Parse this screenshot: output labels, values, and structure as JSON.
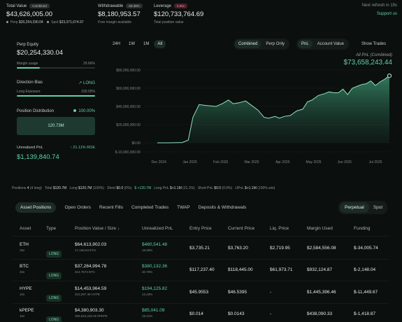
{
  "header": {
    "total_value_label": "Total Value",
    "total_value_badge": "Combined",
    "total_value": "$43,626,005.00",
    "perp_label": "Perp",
    "perp_value": "$20,254,330.04",
    "spot_label": "Spot",
    "spot_value": "$23,371,674.97",
    "withdrawable_label": "Withdrawable",
    "withdrawable_pct": "60.39%",
    "withdrawable_value": "$8,180,953.57",
    "withdrawable_sub": "Free margin available",
    "leverage_label": "Leverage",
    "leverage_badge": "5.96x",
    "leverage_value": "$120,733,764.69",
    "leverage_sub": "Total position value",
    "refresh_text": "Next refresh in 19s",
    "support_link": "Support us"
  },
  "left": {
    "perp_equity_label": "Perp Equity",
    "perp_equity_value": "$20,254,330.04",
    "margin_usage_label": "Margin usage",
    "margin_usage_value": "29.66%",
    "margin_usage_fraction": 0.2966,
    "direction_bias_label": "Direction Bias",
    "direction_bias_value": "LONG",
    "long_exposure_label": "Long Exposure",
    "long_exposure_value": "100.00%",
    "long_exposure_fraction": 1.0,
    "position_distribution_label": "Position Distribution",
    "position_distribution_value": "100.00%",
    "distribution_box_value": "120.73M",
    "unrealized_pnl_label": "Unrealized PnL",
    "unrealized_pnl_roe": "21.11% ROE",
    "unrealized_pnl_value": "$1,139,840.74"
  },
  "chart_controls": {
    "ranges": [
      "24H",
      "1W",
      "1M",
      "All"
    ],
    "active_range": "All",
    "modes": [
      "Combined",
      "Perp Only"
    ],
    "active_mode": "Combined",
    "views": [
      "PnL",
      "Account Value"
    ],
    "active_view": "PnL",
    "show_trades": "Show Trades"
  },
  "chart_data": {
    "type": "area",
    "title": "All PnL (Combined)",
    "current_value_label": "$73,658,243.44",
    "y_ticks": [
      "$80,000,000.00",
      "$60,000,000.00",
      "$40,000,000.00",
      "$20,000,000.00",
      "$0.00",
      "$-10,000,000.00"
    ],
    "ylim": [
      -10000000,
      80000000
    ],
    "x_ticks": [
      "Dec 2024",
      "Jan 2025",
      "Feb 2025",
      "Mar 2025",
      "Apr 2025",
      "May 2025",
      "Jun 2025",
      "Jul 2025"
    ],
    "series": [
      {
        "values": [
          [
            0,
            0
          ],
          [
            0.4,
            0
          ],
          [
            0.8,
            200000
          ],
          [
            1.0,
            3000000
          ],
          [
            1.15,
            28000000
          ],
          [
            1.35,
            42000000
          ],
          [
            1.6,
            41000000
          ],
          [
            1.9,
            40000000
          ],
          [
            2.1,
            43000000
          ],
          [
            2.3,
            47000000
          ],
          [
            2.45,
            43000000
          ],
          [
            2.65,
            44000000
          ],
          [
            2.85,
            46000000
          ],
          [
            3.05,
            41000000
          ],
          [
            3.25,
            36000000
          ],
          [
            3.45,
            28000000
          ],
          [
            3.6,
            27000000
          ],
          [
            3.8,
            29000000
          ],
          [
            3.95,
            27000000
          ],
          [
            4.1,
            29000000
          ],
          [
            4.3,
            30000000
          ],
          [
            4.5,
            35000000
          ],
          [
            4.7,
            37000000
          ],
          [
            4.85,
            45000000
          ],
          [
            5.0,
            47000000
          ],
          [
            5.2,
            52000000
          ],
          [
            5.4,
            54000000
          ],
          [
            5.55,
            56000000
          ],
          [
            5.7,
            55000000
          ],
          [
            5.85,
            55000000
          ],
          [
            6.0,
            59000000
          ],
          [
            6.15,
            53000000
          ],
          [
            6.3,
            60000000
          ],
          [
            6.45,
            62000000
          ],
          [
            6.6,
            64000000
          ],
          [
            6.75,
            65000000
          ],
          [
            6.9,
            68000000
          ],
          [
            7.05,
            63000000
          ],
          [
            7.2,
            67000000
          ],
          [
            7.35,
            70000000
          ],
          [
            7.5,
            73658243
          ]
        ]
      }
    ],
    "grid": true
  },
  "stats_strip": {
    "positions_label": "Positions",
    "positions_value": "4",
    "positions_sub": "(4 long)",
    "total_label": "Total",
    "total_value": "$120.7M",
    "long_label": "Long",
    "long_value": "$120.7M",
    "long_pct": "(100%)",
    "short_label": "Short",
    "short_value": "$0.0",
    "short_pct": "(0%)",
    "net_value": "$ +120.7M",
    "long_pnl_label": "Long PnL",
    "long_pnl_value": "$+1.1M",
    "long_pnl_pct": "(21.1%)",
    "short_pnl_label": "Short PnL",
    "short_pnl_value": "$0.0",
    "short_pnl_pct": "(0.0%)",
    "upnl_label": "UPnL",
    "upnl_value": "$+1.1M",
    "upnl_pct": "(100% win)"
  },
  "table_tabs": {
    "tabs": [
      "Asset Positions",
      "Open Orders",
      "Recent Fills",
      "Completed Trades",
      "TWAP",
      "Deposits & Withdrawals"
    ],
    "active_tab": "Asset Positions",
    "type_tabs": [
      "Perpetual",
      "Spot"
    ],
    "active_type": "Perpetual"
  },
  "table": {
    "headers": [
      "Asset",
      "Type",
      "Position Value / Size",
      "Unrealized PnL",
      "Entry Price",
      "Current Price",
      "Liq. Price",
      "Margin Used",
      "Funding"
    ],
    "rows": [
      {
        "asset": "ETH",
        "leverage": "25x",
        "type": "LONG",
        "value": "$64,613,902.03",
        "size": "17,168.84 ETH",
        "pnl": "$480,541.48",
        "pnl_pct": "18.58%",
        "entry": "$3,735.21",
        "current": "$3,763.20",
        "liq": "$2,719.95",
        "margin": "$2,584,556.08",
        "funding": "$-34,005.74"
      },
      {
        "asset": "BTC",
        "leverage": "40x",
        "type": "LONG",
        "value": "$37,284,994.78",
        "size": "314.7674 BTC",
        "pnl": "$380,132.36",
        "pnl_pct": "40.78%",
        "entry": "$117,237.40",
        "current": "$118,445.00",
        "liq": "$61,973.71",
        "margin": "$932,124.87",
        "funding": "$-2,148.04"
      },
      {
        "asset": "HYPE",
        "leverage": "10x",
        "type": "LONG",
        "value": "$14,453,964.59",
        "size": "310,297.49 HYPE",
        "pnl": "$194,125.82",
        "pnl_pct": "13.43%",
        "entry": "$45.9553",
        "current": "$46.5395",
        "liq": "-",
        "margin": "$1,445,396.46",
        "funding": "$-11,449.67"
      },
      {
        "asset": "kPEPE",
        "leverage": "10x",
        "type": "LONG",
        "value": "$4,380,903.30",
        "size": "305,922,220.00 kPEPE",
        "pnl": "$85,041.09",
        "pnl_pct": "19.41%",
        "entry": "$0.014",
        "current": "$0.0143",
        "liq": "-",
        "margin": "$438,090.33",
        "funding": "$-1,418.87"
      }
    ]
  },
  "colors": {
    "accent": "#5fd3a6",
    "negative": "#e0607a",
    "background": "#0b0f0e"
  }
}
